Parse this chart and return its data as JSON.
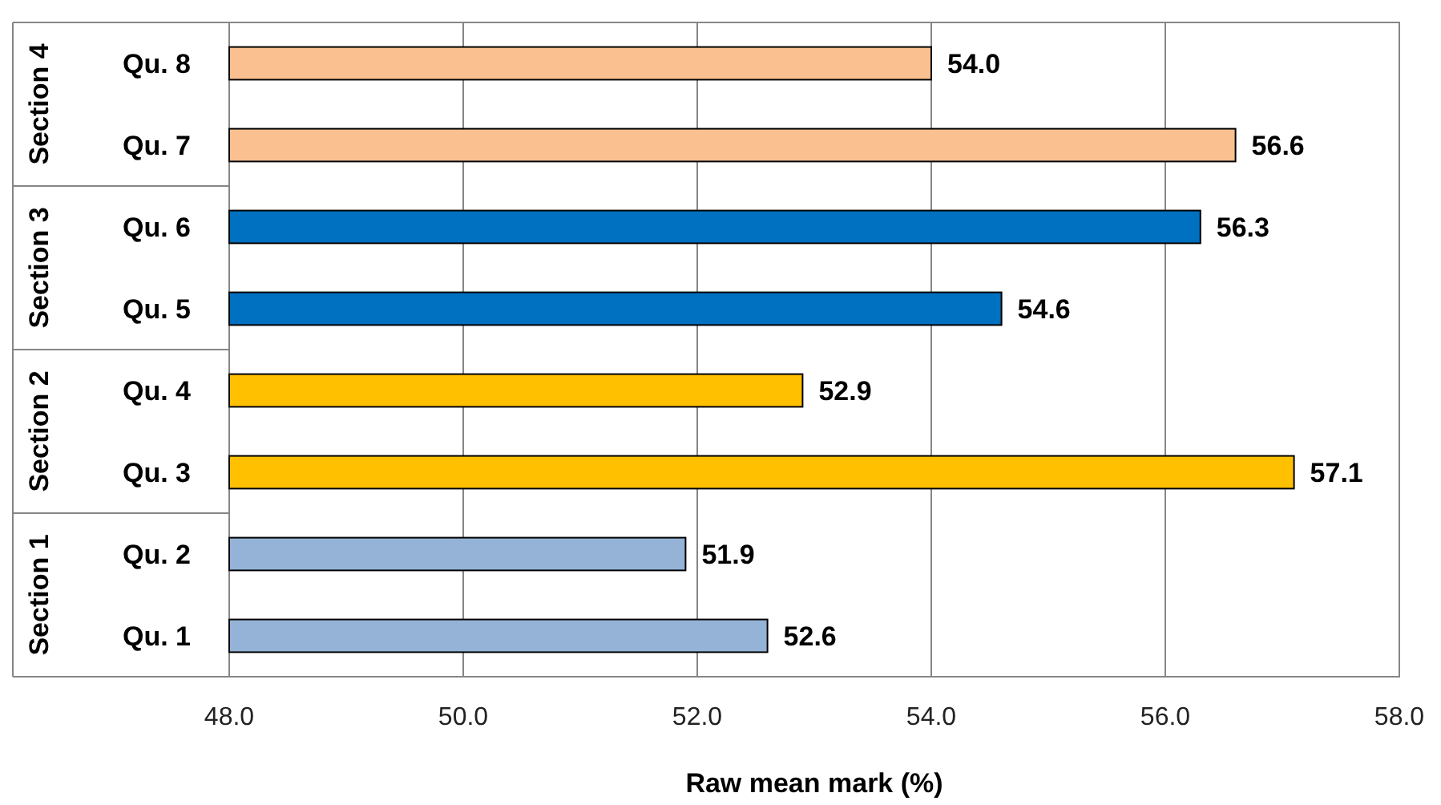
{
  "chart_data": {
    "type": "bar",
    "orientation": "horizontal",
    "xlabel": "Raw mean mark (%)",
    "categories": [
      "Qu. 8",
      "Qu. 7",
      "Qu. 6",
      "Qu. 5",
      "Qu. 4",
      "Qu. 3",
      "Qu. 2",
      "Qu. 1"
    ],
    "values": [
      54.0,
      56.6,
      56.3,
      54.6,
      52.9,
      57.1,
      51.9,
      52.6
    ],
    "value_labels": [
      "54.0",
      "56.6",
      "56.3",
      "54.6",
      "52.9",
      "57.1",
      "51.9",
      "52.6"
    ],
    "colors": [
      "#fac090",
      "#fac090",
      "#0070c0",
      "#0070c0",
      "#ffc000",
      "#ffc000",
      "#95b3d7",
      "#95b3d7"
    ],
    "xlim": [
      48,
      58
    ],
    "xticks": [
      {
        "value": 48,
        "label": "48.0"
      },
      {
        "value": 50,
        "label": "50.0"
      },
      {
        "value": 52,
        "label": "52.0"
      },
      {
        "value": 54,
        "label": "54.0"
      },
      {
        "value": 56,
        "label": "56.0"
      },
      {
        "value": 58,
        "label": "58.0"
      }
    ],
    "grid": "x",
    "annotations": [
      "Section 4",
      "Section 3",
      "Section 2",
      "Section 1"
    ]
  }
}
